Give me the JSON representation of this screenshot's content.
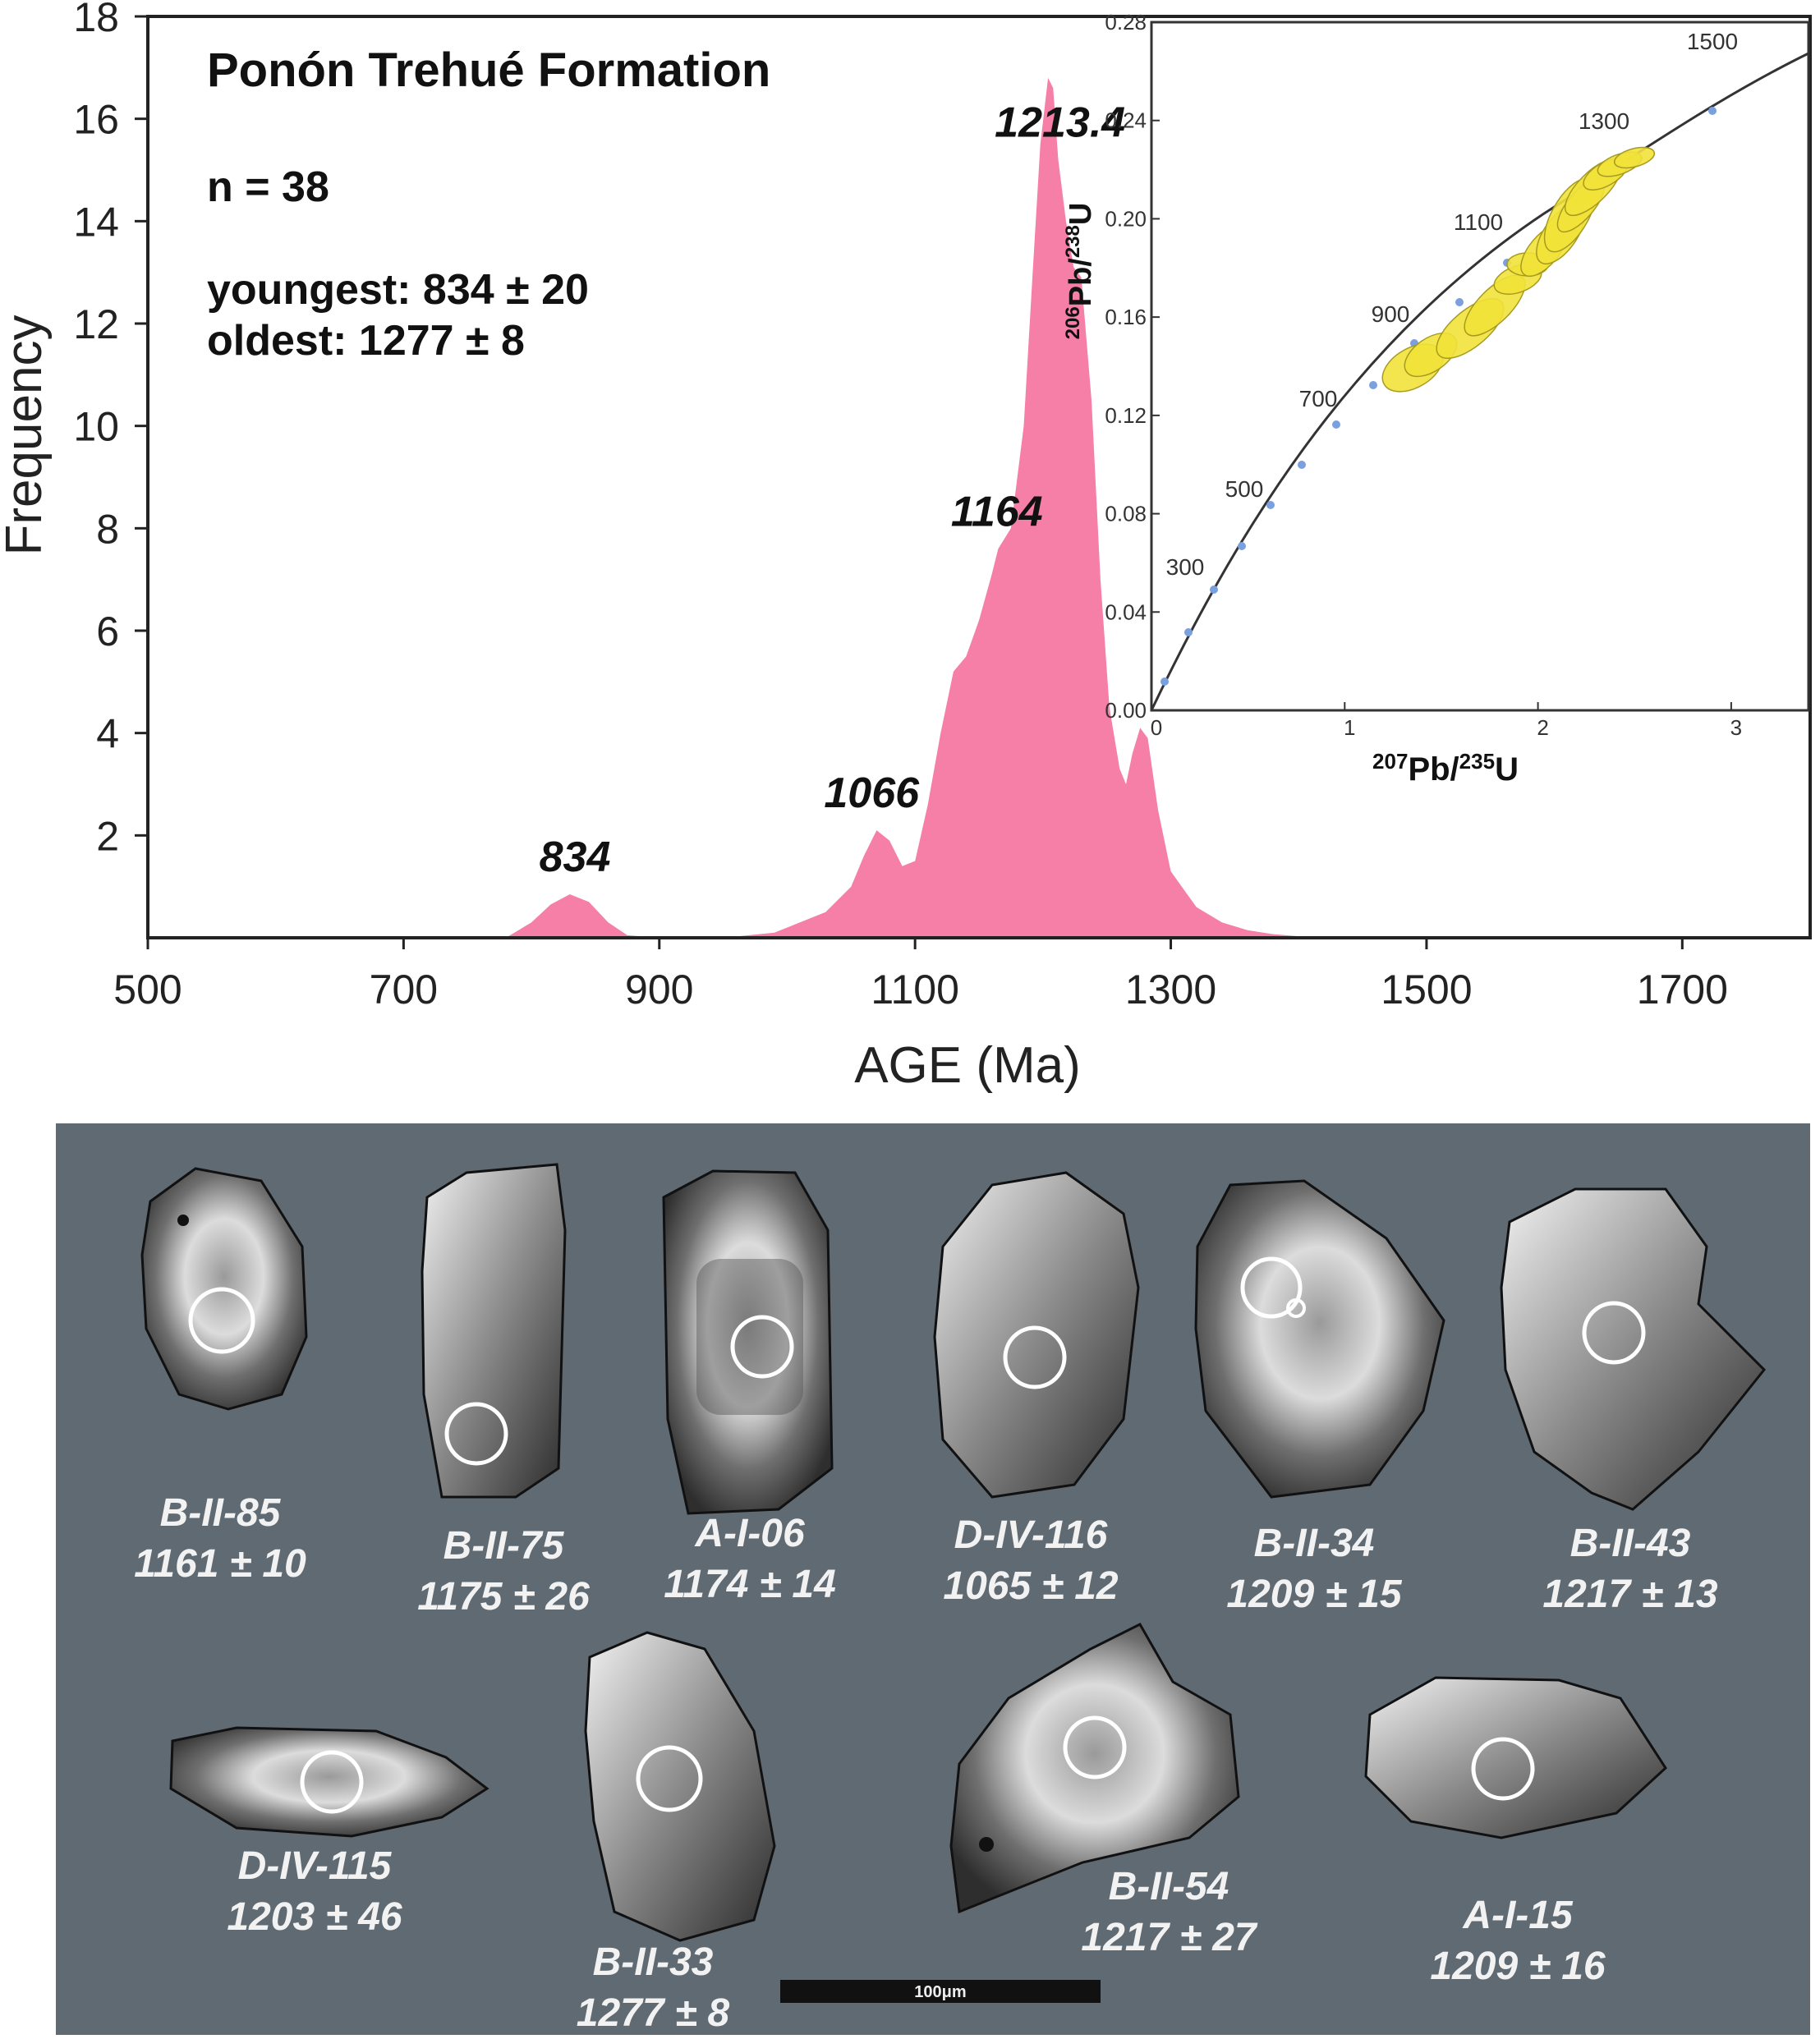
{
  "chart_data": {
    "type": "area",
    "title": "Ponón Trehué Formation",
    "annotations": [
      "n = 38",
      "youngest: 834 ± 20",
      "oldest: 1277 ± 8"
    ],
    "xlabel": "AGE (Ma)",
    "ylabel": "Frequency",
    "xlim": [
      500,
      1800
    ],
    "ylim": [
      0,
      18
    ],
    "xticks": [
      "500",
      "700",
      "900",
      "1100",
      "1300",
      "1500",
      "1700"
    ],
    "yticks": [
      "2",
      "4",
      "6",
      "8",
      "10",
      "12",
      "14",
      "16",
      "18"
    ],
    "color": "#f57fa6",
    "peak_labels": [
      "834",
      "1066",
      "1164",
      "1213.4"
    ],
    "x": [
      780,
      800,
      815,
      830,
      845,
      860,
      875,
      900,
      950,
      990,
      1030,
      1050,
      1060,
      1070,
      1080,
      1090,
      1100,
      1110,
      1120,
      1130,
      1140,
      1150,
      1160,
      1165,
      1175,
      1185,
      1192,
      1198,
      1204,
      1208,
      1212,
      1218,
      1224,
      1230,
      1238,
      1245,
      1252,
      1260,
      1265,
      1270,
      1276,
      1282,
      1290,
      1300,
      1320,
      1340,
      1360,
      1380,
      1400,
      1430,
      1460
    ],
    "y": [
      0,
      0.3,
      0.65,
      0.85,
      0.7,
      0.3,
      0.05,
      0,
      0,
      0.1,
      0.5,
      1.0,
      1.6,
      2.1,
      1.9,
      1.4,
      1.5,
      2.6,
      4.0,
      5.2,
      5.5,
      6.2,
      7.1,
      7.6,
      8.0,
      10.0,
      13.0,
      15.5,
      16.8,
      16.6,
      15.2,
      14.0,
      13.1,
      12.9,
      10.5,
      7.0,
      4.5,
      3.3,
      3.0,
      3.6,
      4.1,
      3.9,
      2.5,
      1.3,
      0.6,
      0.3,
      0.15,
      0.07,
      0.03,
      0.01,
      0
    ]
  },
  "inset": {
    "ylabel_text": "Pb/",
    "ylabel_sup1": "206",
    "ylabel_sup2": "238",
    "ylabel_end": "U",
    "xlabel_sup1": "207",
    "xlabel_text": "Pb/",
    "xlabel_sup2": "235",
    "xlabel_end": "U",
    "xticks": [
      "0",
      "1",
      "2",
      "3"
    ],
    "yticks": [
      "0.00",
      "0.04",
      "0.08",
      "0.12",
      "0.16",
      "0.20",
      "0.24",
      "0.28"
    ],
    "concordia_labels": [
      "300",
      "500",
      "700",
      "900",
      "1100",
      "1300",
      "1500"
    ],
    "ellipse_color": "#f2e23a"
  },
  "grains": [
    {
      "id": "B-II-85",
      "age": "1161 ± 10"
    },
    {
      "id": "B-II-75",
      "age": "1175 ± 26"
    },
    {
      "id": "A-I-06",
      "age": "1174 ± 14"
    },
    {
      "id": "D-IV-116",
      "age": "1065 ± 12"
    },
    {
      "id": "B-II-34",
      "age": "1209 ± 15"
    },
    {
      "id": "B-II-43",
      "age": "1217 ± 13"
    },
    {
      "id": "D-IV-115",
      "age": "1203 ± 46"
    },
    {
      "id": "B-II-33",
      "age": "1277 ± 8"
    },
    {
      "id": "B-II-54",
      "age": "1217 ± 27"
    },
    {
      "id": "A-I-15",
      "age": "1209 ± 16"
    }
  ],
  "scale_bar": "100μm"
}
